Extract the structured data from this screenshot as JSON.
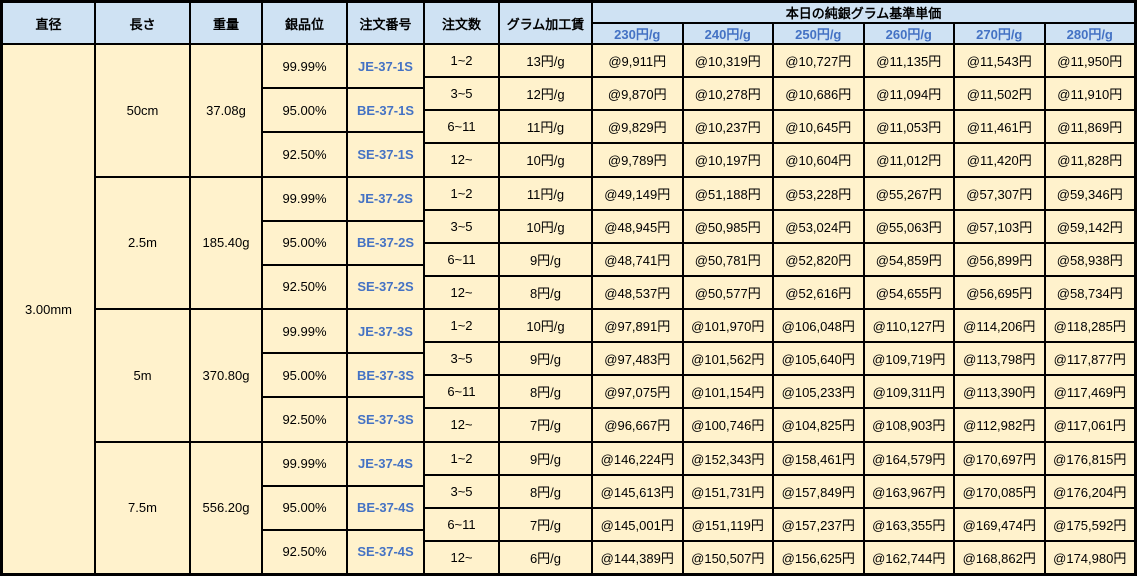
{
  "header": {
    "columns": [
      "直径",
      "長さ",
      "重量",
      "銀品位",
      "注文番号",
      "注文数",
      "グラム加工賃"
    ],
    "group_title": "本日の純銀グラム基準単価",
    "rate_columns": [
      "230円/g",
      "240円/g",
      "250円/g",
      "260円/g",
      "270円/g",
      "280円/g"
    ]
  },
  "diameter": "3.00mm",
  "blocks": [
    {
      "length": "50cm",
      "weight": "37.08g",
      "purities": [
        {
          "purity": "99.99%",
          "code": "JE-37-1S"
        },
        {
          "purity": "95.00%",
          "code": "BE-37-1S"
        },
        {
          "purity": "92.50%",
          "code": "SE-37-1S"
        }
      ],
      "rows": [
        {
          "qty": "1~2",
          "fee": "13円/g",
          "prices": [
            "@9,911円",
            "@10,319円",
            "@10,727円",
            "@11,135円",
            "@11,543円",
            "@11,950円"
          ]
        },
        {
          "qty": "3~5",
          "fee": "12円/g",
          "prices": [
            "@9,870円",
            "@10,278円",
            "@10,686円",
            "@11,094円",
            "@11,502円",
            "@11,910円"
          ]
        },
        {
          "qty": "6~11",
          "fee": "11円/g",
          "prices": [
            "@9,829円",
            "@10,237円",
            "@10,645円",
            "@11,053円",
            "@11,461円",
            "@11,869円"
          ]
        },
        {
          "qty": "12~",
          "fee": "10円/g",
          "prices": [
            "@9,789円",
            "@10,197円",
            "@10,604円",
            "@11,012円",
            "@11,420円",
            "@11,828円"
          ]
        }
      ]
    },
    {
      "length": "2.5m",
      "weight": "185.40g",
      "purities": [
        {
          "purity": "99.99%",
          "code": "JE-37-2S"
        },
        {
          "purity": "95.00%",
          "code": "BE-37-2S"
        },
        {
          "purity": "92.50%",
          "code": "SE-37-2S"
        }
      ],
      "rows": [
        {
          "qty": "1~2",
          "fee": "11円/g",
          "prices": [
            "@49,149円",
            "@51,188円",
            "@53,228円",
            "@55,267円",
            "@57,307円",
            "@59,346円"
          ]
        },
        {
          "qty": "3~5",
          "fee": "10円/g",
          "prices": [
            "@48,945円",
            "@50,985円",
            "@53,024円",
            "@55,063円",
            "@57,103円",
            "@59,142円"
          ]
        },
        {
          "qty": "6~11",
          "fee": "9円/g",
          "prices": [
            "@48,741円",
            "@50,781円",
            "@52,820円",
            "@54,859円",
            "@56,899円",
            "@58,938円"
          ]
        },
        {
          "qty": "12~",
          "fee": "8円/g",
          "prices": [
            "@48,537円",
            "@50,577円",
            "@52,616円",
            "@54,655円",
            "@56,695円",
            "@58,734円"
          ]
        }
      ]
    },
    {
      "length": "5m",
      "weight": "370.80g",
      "purities": [
        {
          "purity": "99.99%",
          "code": "JE-37-3S"
        },
        {
          "purity": "95.00%",
          "code": "BE-37-3S"
        },
        {
          "purity": "92.50%",
          "code": "SE-37-3S"
        }
      ],
      "rows": [
        {
          "qty": "1~2",
          "fee": "10円/g",
          "prices": [
            "@97,891円",
            "@101,970円",
            "@106,048円",
            "@110,127円",
            "@114,206円",
            "@118,285円"
          ]
        },
        {
          "qty": "3~5",
          "fee": "9円/g",
          "prices": [
            "@97,483円",
            "@101,562円",
            "@105,640円",
            "@109,719円",
            "@113,798円",
            "@117,877円"
          ]
        },
        {
          "qty": "6~11",
          "fee": "8円/g",
          "prices": [
            "@97,075円",
            "@101,154円",
            "@105,233円",
            "@109,311円",
            "@113,390円",
            "@117,469円"
          ]
        },
        {
          "qty": "12~",
          "fee": "7円/g",
          "prices": [
            "@96,667円",
            "@100,746円",
            "@104,825円",
            "@108,903円",
            "@112,982円",
            "@117,061円"
          ]
        }
      ]
    },
    {
      "length": "7.5m",
      "weight": "556.20g",
      "purities": [
        {
          "purity": "99.99%",
          "code": "JE-37-4S"
        },
        {
          "purity": "95.00%",
          "code": "BE-37-4S"
        },
        {
          "purity": "92.50%",
          "code": "SE-37-4S"
        }
      ],
      "rows": [
        {
          "qty": "1~2",
          "fee": "9円/g",
          "prices": [
            "@146,224円",
            "@152,343円",
            "@158,461円",
            "@164,579円",
            "@170,697円",
            "@176,815円"
          ]
        },
        {
          "qty": "3~5",
          "fee": "8円/g",
          "prices": [
            "@145,613円",
            "@151,731円",
            "@157,849円",
            "@163,967円",
            "@170,085円",
            "@176,204円"
          ]
        },
        {
          "qty": "6~11",
          "fee": "7円/g",
          "prices": [
            "@145,001円",
            "@151,119円",
            "@157,237円",
            "@163,355円",
            "@169,474円",
            "@175,592円"
          ]
        },
        {
          "qty": "12~",
          "fee": "6円/g",
          "prices": [
            "@144,389円",
            "@150,507円",
            "@156,625円",
            "@162,744円",
            "@168,862円",
            "@174,980円"
          ]
        }
      ]
    }
  ],
  "colors": {
    "header_bg": "#cfe2f3",
    "body_bg": "#fff2cc",
    "gridline": "#000000",
    "link_blue": "#4472c4"
  }
}
